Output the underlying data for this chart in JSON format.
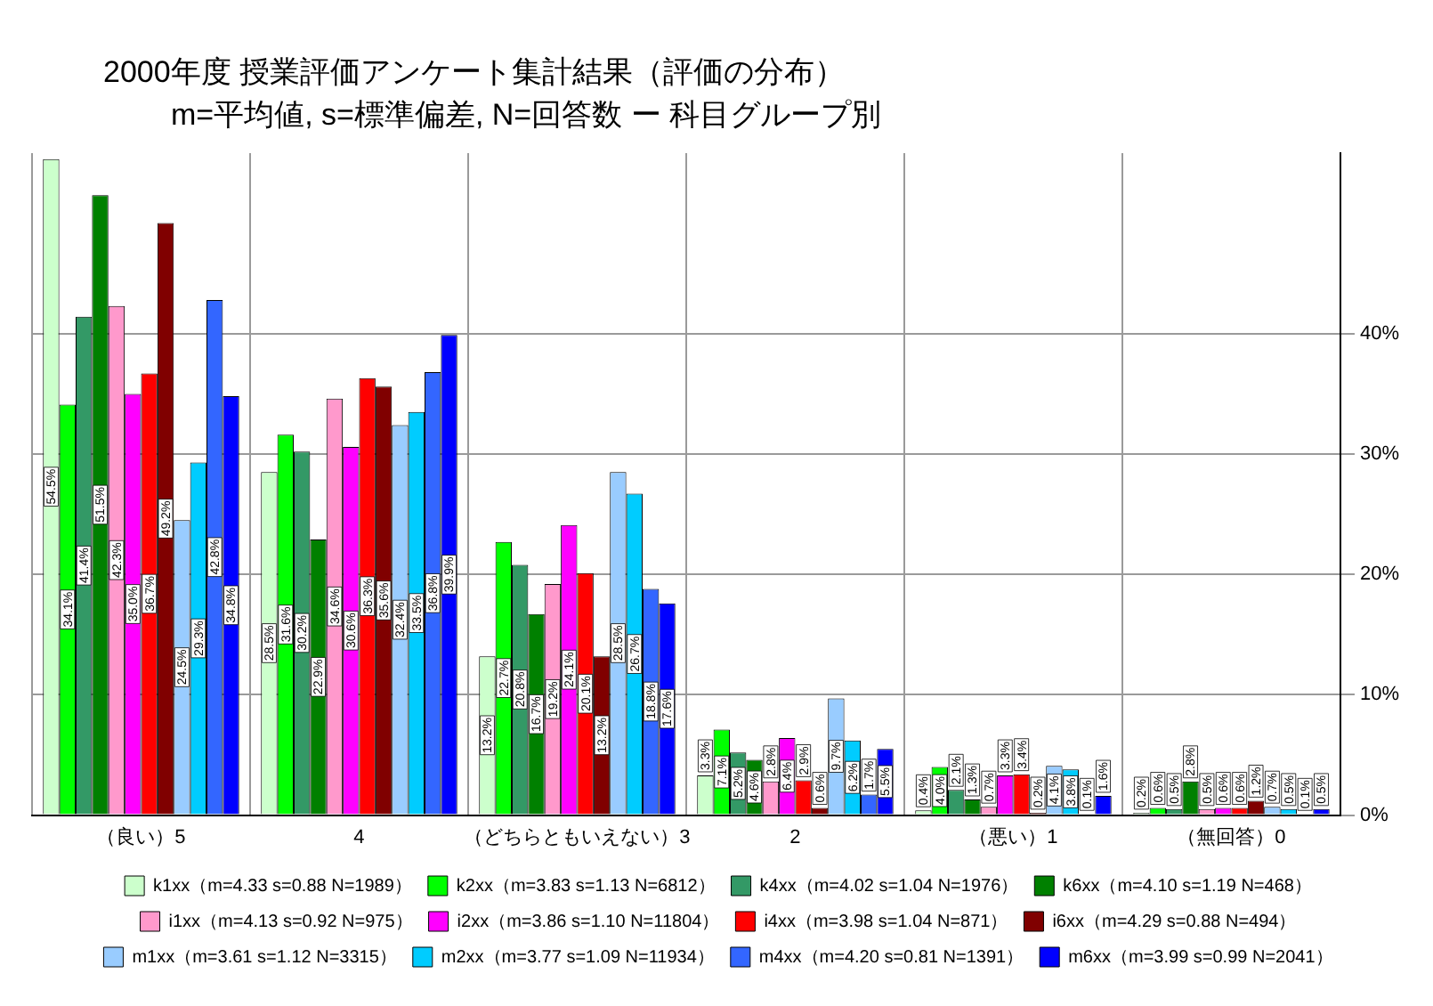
{
  "chart_data": {
    "type": "bar",
    "title": "2000年度 授業評価アンケート集計結果（評価の分布）",
    "subtitle": "m=平均値, s=標準偏差, N=回答数 ー 科目グループ別",
    "categories": [
      "（良い）5",
      "4",
      "（どちらともいえない）3",
      "2",
      "（悪い）1",
      "（無回答）0"
    ],
    "series": [
      {
        "name": "k1xx（m=4.33 s=0.88 N=1989）",
        "color": "#ccffcc",
        "values": [
          54.5,
          28.5,
          13.2,
          3.3,
          0.4,
          0.2
        ],
        "value_labels": [
          "54.5%",
          "28.5%",
          "13.2%",
          "3.3%",
          "0.4%",
          "0.2%"
        ]
      },
      {
        "name": "k2xx（m=3.83 s=1.13 N=6812）",
        "color": "#00ff00",
        "values": [
          34.1,
          31.6,
          22.7,
          7.1,
          4.0,
          0.6
        ],
        "value_labels": [
          "34.1%",
          "31.6%",
          "22.7%",
          "7.1%",
          "4.0%",
          "0.6%"
        ]
      },
      {
        "name": "k4xx（m=4.02 s=1.04 N=1976）",
        "color": "#339966",
        "values": [
          41.4,
          30.2,
          20.8,
          5.2,
          2.1,
          0.5
        ],
        "value_labels": [
          "41.4%",
          "30.2%",
          "20.8%",
          "5.2%",
          "2.1%",
          "0.5%"
        ]
      },
      {
        "name": "k6xx（m=4.10 s=1.19 N=468）",
        "color": "#008000",
        "values": [
          51.5,
          22.9,
          16.7,
          4.6,
          1.3,
          2.8
        ],
        "value_labels": [
          "51.5%",
          "22.9%",
          "16.7%",
          "4.6%",
          "1.3%",
          "2.8%"
        ]
      },
      {
        "name": "i1xx（m=4.13 s=0.92 N=975）",
        "color": "#ff99cc",
        "values": [
          42.3,
          34.6,
          19.2,
          2.8,
          0.7,
          0.5
        ],
        "value_labels": [
          "42.3%",
          "34.6%",
          "19.2%",
          "2.8%",
          "0.7%",
          "0.5%"
        ]
      },
      {
        "name": "i2xx（m=3.86 s=1.10 N=11804）",
        "color": "#ff00ff",
        "values": [
          35.0,
          30.6,
          24.1,
          6.4,
          3.3,
          0.6
        ],
        "value_labels": [
          "35.0%",
          "30.6%",
          "24.1%",
          "6.4%",
          "3.3%",
          "0.6%"
        ]
      },
      {
        "name": "i4xx（m=3.98 s=1.04 N=871）",
        "color": "#ff0000",
        "values": [
          36.7,
          36.3,
          20.1,
          2.9,
          3.4,
          0.6
        ],
        "value_labels": [
          "36.7%",
          "36.3%",
          "20.1%",
          "2.9%",
          "3.4%",
          "0.6%"
        ]
      },
      {
        "name": "i6xx（m=4.29 s=0.88 N=494）",
        "color": "#800000",
        "values": [
          49.2,
          35.6,
          13.2,
          0.6,
          0.2,
          1.2
        ],
        "value_labels": [
          "49.2%",
          "35.6%",
          "13.2%",
          "0.6%",
          "0.2%",
          "1.2%"
        ]
      },
      {
        "name": "m1xx（m=3.61 s=1.12 N=3315）",
        "color": "#99ccff",
        "values": [
          24.5,
          32.4,
          28.5,
          9.7,
          4.1,
          0.7
        ],
        "value_labels": [
          "24.5%",
          "32.4%",
          "28.5%",
          "9.7%",
          "4.1%",
          "0.7%"
        ]
      },
      {
        "name": "m2xx（m=3.77 s=1.09 N=11934）",
        "color": "#00ccff",
        "values": [
          29.3,
          33.5,
          26.7,
          6.2,
          3.8,
          0.5
        ],
        "value_labels": [
          "29.3%",
          "33.5%",
          "26.7%",
          "6.2%",
          "3.8%",
          "0.5%"
        ]
      },
      {
        "name": "m4xx（m=4.20 s=0.81 N=1391）",
        "color": "#3366ff",
        "values": [
          42.8,
          36.8,
          18.8,
          1.7,
          0.1,
          0.1
        ],
        "value_labels": [
          "42.8%",
          "36.8%",
          "18.8%",
          "1.7%",
          "0.1%",
          "0.1%"
        ]
      },
      {
        "name": "m6xx（m=3.99 s=0.99 N=2041）",
        "color": "#0000ff",
        "values": [
          34.8,
          39.9,
          17.6,
          5.5,
          1.6,
          0.5
        ],
        "value_labels": [
          "34.8%",
          "39.9%",
          "17.6%",
          "5.5%",
          "1.6%",
          "0.5%"
        ]
      }
    ],
    "ylim": [
      0,
      55
    ],
    "yticks": [
      {
        "value": 0,
        "label": "0%"
      },
      {
        "value": 10,
        "label": "10%"
      },
      {
        "value": 20,
        "label": "20%"
      },
      {
        "value": 30,
        "label": "30%"
      },
      {
        "value": 40,
        "label": "40%"
      }
    ],
    "grid": true,
    "legend": "bottom"
  }
}
